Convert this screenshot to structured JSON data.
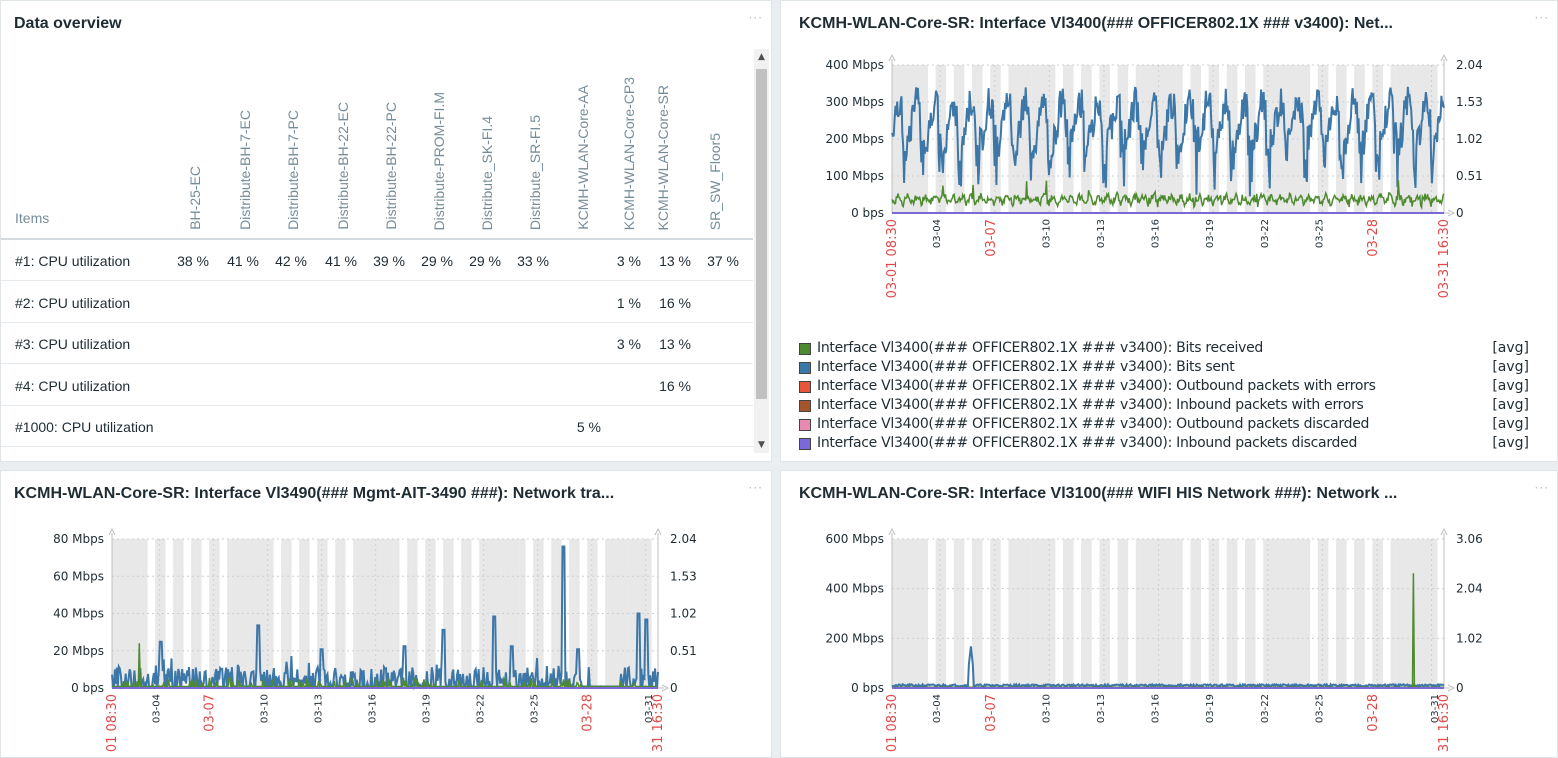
{
  "overview": {
    "title": "Data overview",
    "menu": "···",
    "items_label": "Items",
    "columns": [
      "BH-25-EC",
      "Distribute-BH-7-EC",
      "Distribute-BH-7-PC",
      "Distribute-BH-22-EC",
      "Distribute-BH-22-PC",
      "Distribute-PROM-FI.M",
      "Distribute_SK-FI.4",
      "Distribute_SR-FI.5",
      "KCMH-WLAN-Core-AA",
      "KCMH-WLAN-Core-CP3",
      "KCMH-WLAN-Core-SR",
      "SR_SW_Floor5"
    ],
    "rows": [
      {
        "label": "#1: CPU utilization",
        "cells": [
          "38 %",
          "41 %",
          "42 %",
          "41 %",
          "39 %",
          "29 %",
          "29 %",
          "33 %",
          "",
          "3 %",
          "13 %",
          "37 %"
        ]
      },
      {
        "label": "#2: CPU utilization",
        "cells": [
          "",
          "",
          "",
          "",
          "",
          "",
          "",
          "",
          "",
          "1 %",
          "16 %",
          ""
        ]
      },
      {
        "label": "#3: CPU utilization",
        "cells": [
          "",
          "",
          "",
          "",
          "",
          "",
          "",
          "",
          "",
          "3 %",
          "13 %",
          ""
        ]
      },
      {
        "label": "#4: CPU utilization",
        "cells": [
          "",
          "",
          "",
          "",
          "",
          "",
          "",
          "",
          "",
          "",
          "16 %",
          ""
        ]
      },
      {
        "label": "#1000: CPU utilization",
        "cells": [
          "",
          "",
          "",
          "",
          "",
          "",
          "",
          "",
          "5 %",
          "",
          "",
          ""
        ]
      }
    ]
  },
  "graphs": [
    {
      "title": "KCMH-WLAN-Core-SR: Interface Vl3400(### OFFICER802.1X ### v3400): Net...",
      "menu": "···",
      "left_ticks": [
        "400 Mbps",
        "300 Mbps",
        "200 Mbps",
        "100 Mbps",
        "0 bps"
      ],
      "right_ticks": [
        "2.04",
        "1.53",
        "1.02",
        "0.51",
        "0"
      ],
      "x_labels": [
        "03-01 08:30",
        "03-04",
        "03-07",
        "03-10",
        "03-13",
        "03-16",
        "03-19",
        "03-22",
        "03-25",
        "03-28",
        "03-31 16:30"
      ],
      "legend": [
        {
          "name": "Interface Vl3400(### OFFICER802.1X ### v3400): Bits received",
          "fn": "[avg]",
          "color": "#4e8a2f"
        },
        {
          "name": "Interface Vl3400(### OFFICER802.1X ### v3400): Bits sent",
          "fn": "[avg]",
          "color": "#3d77a8"
        },
        {
          "name": "Interface Vl3400(### OFFICER802.1X ### v3400): Outbound packets with errors",
          "fn": "[avg]",
          "color": "#e8553a"
        },
        {
          "name": "Interface Vl3400(### OFFICER802.1X ### v3400): Inbound packets with errors",
          "fn": "[avg]",
          "color": "#a5552e"
        },
        {
          "name": "Interface Vl3400(### OFFICER802.1X ### v3400): Outbound packets discarded",
          "fn": "[avg]",
          "color": "#e68ab0"
        },
        {
          "name": "Interface Vl3400(### OFFICER802.1X ### v3400): Inbound packets discarded",
          "fn": "[avg]",
          "color": "#7b68d9"
        }
      ]
    },
    {
      "title": "KCMH-WLAN-Core-SR: Interface Vl3490(### Mgmt-AIT-3490 ###): Network tra...",
      "menu": "···",
      "left_ticks": [
        "80 Mbps",
        "60 Mbps",
        "40 Mbps",
        "20 Mbps",
        "0 bps"
      ],
      "right_ticks": [
        "2.04",
        "1.53",
        "1.02",
        "0.51",
        "0"
      ],
      "x_labels": [
        "01 08:30",
        "03-04",
        "03-07",
        "03-10",
        "03-13",
        "03-16",
        "03-19",
        "03-22",
        "03-25",
        "03-28",
        "03-31",
        "31 16:30"
      ]
    },
    {
      "title": "KCMH-WLAN-Core-SR: Interface Vl3100(### WIFI HIS Network ###): Network ...",
      "menu": "···",
      "left_ticks": [
        "600 Mbps",
        "400 Mbps",
        "200 Mbps",
        "0 bps"
      ],
      "right_ticks": [
        "3.06",
        "2.04",
        "1.02",
        "0"
      ],
      "x_labels": [
        "01 08:30",
        "03-04",
        "03-07",
        "03-10",
        "03-13",
        "03-16",
        "03-19",
        "03-22",
        "03-25",
        "03-28",
        "03-31",
        "31 16:30"
      ]
    }
  ],
  "colors": {
    "received": "#4e8a2f",
    "sent": "#3d77a8",
    "zero_line": "#7b68d9",
    "red_label": "#e04848"
  }
}
